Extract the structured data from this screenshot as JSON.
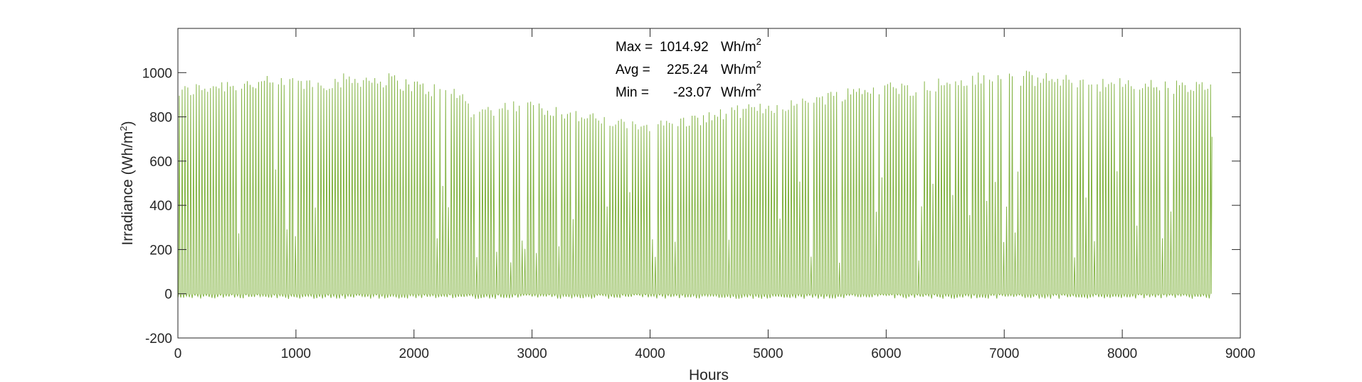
{
  "chart_data": {
    "type": "line",
    "title": "",
    "xlabel": "Hours",
    "ylabel": "Irradiance (Wh/m²)",
    "ylabel_parts": {
      "main": "Irradiance (Wh/m",
      "sup": "2",
      "close": ")"
    },
    "xlim": [
      0,
      9000
    ],
    "ylim": [
      -200,
      1200
    ],
    "xticks": [
      0,
      1000,
      2000,
      3000,
      4000,
      5000,
      6000,
      7000,
      8000,
      9000
    ],
    "xtick_labels": [
      "0",
      "1000",
      "2000",
      "3000",
      "4000",
      "5000",
      "6000",
      "7000",
      "8000",
      "9000"
    ],
    "yticks": [
      -200,
      0,
      200,
      400,
      600,
      800,
      1000
    ],
    "ytick_labels": [
      "-200",
      "0",
      "200",
      "400",
      "600",
      "800",
      "1000"
    ],
    "grid": false,
    "series": [
      {
        "color": "#77ac30",
        "hours_total": 8760,
        "daily_peak_envelope": {
          "x": [
            0,
            300,
            700,
            1000,
            1300,
            1500,
            1800,
            2100,
            2400,
            2500,
            2800,
            3100,
            3400,
            3600,
            3800,
            4100,
            4400,
            4700,
            5000,
            5300,
            5600,
            5900,
            6200,
            6500,
            6800,
            7000,
            7300,
            7600,
            7900,
            8200,
            8500,
            8760
          ],
          "y": [
            940,
            975,
            985,
            985,
            990,
            1005,
            1000,
            960,
            935,
            840,
            880,
            870,
            830,
            810,
            790,
            790,
            815,
            850,
            870,
            900,
            930,
            965,
            960,
            985,
            1005,
            1014.92,
            1005,
            990,
            980,
            975,
            965,
            965
          ]
        },
        "min": -23.07,
        "max": 1014.92,
        "avg": 225.24
      }
    ],
    "annotations": [
      {
        "label": "Max =",
        "value": "1014.92",
        "unit": "Wh/m",
        "sup": "2"
      },
      {
        "label": "Avg =",
        "value": "225.24",
        "unit": "Wh/m",
        "sup": "2"
      },
      {
        "label": "Min =",
        "value": "-23.07",
        "unit": "Wh/m",
        "sup": "2"
      }
    ]
  }
}
